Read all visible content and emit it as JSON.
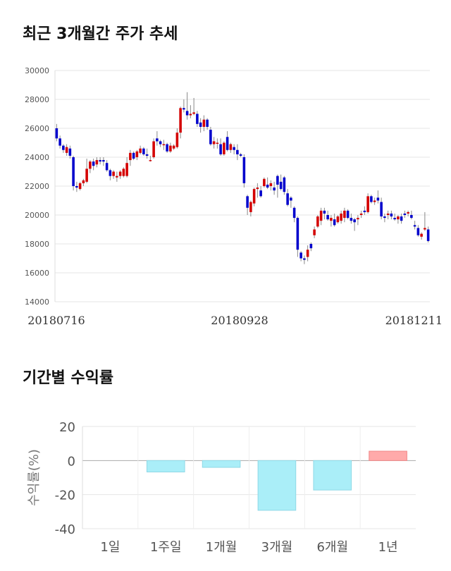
{
  "titles": {
    "price_chart": "최근 3개월간 주가 추세",
    "return_chart": "기간별 수익률"
  },
  "chart_data": [
    {
      "type": "candlestick",
      "title": "최근 3개월간 주가 추세",
      "ylim": [
        14000,
        30000
      ],
      "y_ticks": [
        "14000",
        "16000",
        "18000",
        "20000",
        "22000",
        "24000",
        "26000",
        "28000",
        "30000"
      ],
      "x_labels": [
        "20180716",
        "20180928",
        "20181211"
      ],
      "grid": true,
      "colors": {
        "up": "#d40000",
        "down": "#0000cc",
        "wick": "#888888"
      },
      "candles": [
        [
          26000,
          26300,
          25100,
          25300
        ],
        [
          25300,
          25500,
          24600,
          24800
        ],
        [
          24800,
          24900,
          24300,
          24500
        ],
        [
          24300,
          24900,
          24100,
          24700
        ],
        [
          24600,
          24800,
          23900,
          24100
        ],
        [
          24000,
          24100,
          21700,
          22000
        ],
        [
          22000,
          22300,
          21600,
          21900
        ],
        [
          21800,
          22300,
          21700,
          22200
        ],
        [
          22200,
          22500,
          22000,
          22400
        ],
        [
          22300,
          23900,
          22200,
          23200
        ],
        [
          23200,
          23800,
          22900,
          23700
        ],
        [
          23700,
          23900,
          23100,
          23400
        ],
        [
          23500,
          24000,
          23300,
          23800
        ],
        [
          23800,
          24000,
          23500,
          23700
        ],
        [
          23800,
          24000,
          23400,
          23700
        ],
        [
          23600,
          23800,
          23000,
          23100
        ],
        [
          23100,
          23200,
          22400,
          22700
        ],
        [
          22700,
          23100,
          22500,
          23000
        ],
        [
          22600,
          23000,
          22300,
          22700
        ],
        [
          22700,
          23100,
          22500,
          23000
        ],
        [
          22700,
          23300,
          22600,
          23200
        ],
        [
          22700,
          24000,
          22600,
          23600
        ],
        [
          23800,
          24500,
          23400,
          24300
        ],
        [
          24300,
          24400,
          23800,
          23900
        ],
        [
          24000,
          24500,
          23800,
          24400
        ],
        [
          24300,
          24800,
          24200,
          24600
        ],
        [
          24600,
          24700,
          24100,
          24200
        ],
        [
          24200,
          24600,
          23900,
          24100
        ],
        [
          23800,
          24100,
          23700,
          23800
        ],
        [
          24000,
          25300,
          23900,
          25100
        ],
        [
          25300,
          25800,
          24800,
          25100
        ],
        [
          25100,
          25200,
          24700,
          24900
        ],
        [
          24900,
          25200,
          24500,
          24900
        ],
        [
          24900,
          25000,
          24300,
          24400
        ],
        [
          24400,
          25000,
          24300,
          24800
        ],
        [
          24600,
          24900,
          24500,
          24800
        ],
        [
          24700,
          26000,
          24600,
          25700
        ],
        [
          25700,
          27500,
          25300,
          27400
        ],
        [
          27400,
          28000,
          27100,
          27300
        ],
        [
          27200,
          28500,
          26600,
          26900
        ],
        [
          26900,
          27600,
          26700,
          27000
        ],
        [
          27000,
          28100,
          26900,
          27100
        ],
        [
          27000,
          27200,
          26100,
          26300
        ],
        [
          26400,
          26700,
          25700,
          26100
        ],
        [
          26100,
          26900,
          25800,
          26600
        ],
        [
          26600,
          26700,
          25900,
          26100
        ],
        [
          25900,
          26100,
          24800,
          24900
        ],
        [
          24900,
          25400,
          24600,
          25100
        ],
        [
          25000,
          25300,
          24600,
          25000
        ],
        [
          24900,
          25300,
          24100,
          24200
        ],
        [
          24200,
          25100,
          24100,
          25000
        ],
        [
          25400,
          25800,
          24400,
          24500
        ],
        [
          24500,
          25000,
          24300,
          24900
        ],
        [
          24700,
          24900,
          24200,
          24500
        ],
        [
          24500,
          24900,
          23800,
          24200
        ],
        [
          24200,
          24300,
          24000,
          24100
        ],
        [
          24000,
          24200,
          21900,
          22200
        ],
        [
          21300,
          21400,
          20000,
          20500
        ],
        [
          20200,
          21000,
          19900,
          20900
        ],
        [
          20800,
          21900,
          20600,
          21800
        ],
        [
          21800,
          22200,
          21200,
          21900
        ],
        [
          21700,
          22000,
          21200,
          21300
        ],
        [
          22000,
          22600,
          21900,
          22500
        ],
        [
          22100,
          22600,
          21800,
          21900
        ],
        [
          22000,
          22400,
          21700,
          22200
        ],
        [
          21900,
          22300,
          21400,
          21700
        ],
        [
          22700,
          22800,
          21200,
          22100
        ],
        [
          22300,
          22800,
          21700,
          21800
        ],
        [
          22600,
          22700,
          21400,
          21600
        ],
        [
          21500,
          21800,
          20600,
          20700
        ],
        [
          21200,
          21300,
          20500,
          21000
        ],
        [
          20500,
          20600,
          19500,
          19800
        ],
        [
          19800,
          19900,
          17100,
          17600
        ],
        [
          17400,
          17500,
          16800,
          17000
        ],
        [
          17000,
          17200,
          16600,
          16900
        ],
        [
          17100,
          17900,
          16800,
          17600
        ],
        [
          18000,
          18100,
          17500,
          17700
        ],
        [
          18600,
          19200,
          18400,
          19000
        ],
        [
          19200,
          20000,
          19100,
          19900
        ],
        [
          19600,
          20500,
          19300,
          20300
        ],
        [
          20300,
          20500,
          19700,
          20100
        ],
        [
          20000,
          20300,
          19600,
          19700
        ],
        [
          19600,
          20000,
          19200,
          19800
        ],
        [
          19700,
          20100,
          19200,
          19300
        ],
        [
          19500,
          20000,
          19400,
          19900
        ],
        [
          19600,
          20300,
          19400,
          20100
        ],
        [
          19800,
          20500,
          19500,
          20300
        ],
        [
          20300,
          20400,
          19700,
          19800
        ],
        [
          19800,
          20100,
          19400,
          19600
        ],
        [
          19700,
          19800,
          18900,
          19500
        ],
        [
          19700,
          20000,
          19300,
          19800
        ],
        [
          20000,
          20300,
          19800,
          20100
        ],
        [
          20300,
          20600,
          20000,
          20200
        ],
        [
          20200,
          21500,
          20100,
          21300
        ],
        [
          21300,
          21400,
          20800,
          20900
        ],
        [
          20900,
          21200,
          20700,
          21000
        ],
        [
          21200,
          21700,
          20800,
          21000
        ],
        [
          20900,
          21200,
          19700,
          19900
        ],
        [
          19900,
          20100,
          19500,
          19800
        ],
        [
          20000,
          20300,
          19700,
          20100
        ],
        [
          20100,
          20300,
          19700,
          19900
        ],
        [
          19800,
          20100,
          19600,
          19700
        ],
        [
          19700,
          20000,
          19400,
          19900
        ],
        [
          19900,
          20100,
          19400,
          19600
        ],
        [
          20100,
          20300,
          19800,
          20000
        ],
        [
          20100,
          20300,
          19900,
          20200
        ],
        [
          20000,
          20300,
          19700,
          19800
        ],
        [
          19300,
          19600,
          19000,
          19200
        ],
        [
          19100,
          19300,
          18500,
          18600
        ],
        [
          18500,
          18800,
          18300,
          18700
        ],
        [
          19000,
          20200,
          18900,
          19100
        ],
        [
          19000,
          19200,
          18100,
          18200
        ]
      ]
    },
    {
      "type": "bar",
      "title": "기간별 수익률",
      "ylabel": "수익률(%)",
      "ylim": [
        -40,
        20
      ],
      "y_ticks": [
        "20",
        "0",
        "-20",
        "-40"
      ],
      "categories": [
        "1일",
        "1주일",
        "1개월",
        "3개월",
        "6개월",
        "1년"
      ],
      "values": [
        0,
        -6.7,
        -4.0,
        -29.2,
        -17.3,
        5.5
      ],
      "colors": {
        "positive": "#ffaaaa",
        "negative": "#aaeef8"
      }
    }
  ]
}
